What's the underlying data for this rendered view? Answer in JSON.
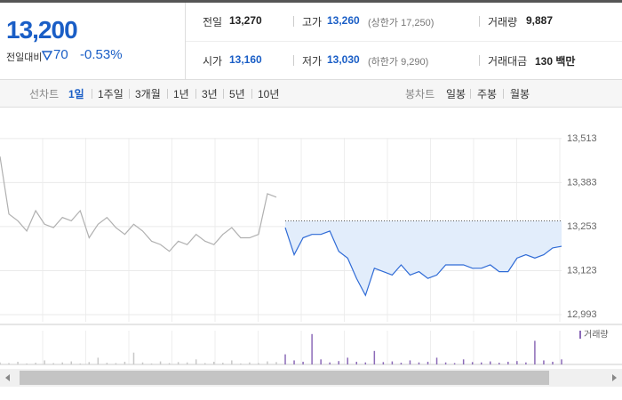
{
  "quote": {
    "price": "13,200",
    "change_label": "전일대비",
    "change": "70",
    "change_pct": "-0.53%",
    "fields": [
      {
        "label": "전일",
        "value": "13,270"
      },
      {
        "label": "고가",
        "value": "13,260",
        "note": "(상한가 17,250)"
      },
      {
        "label": "거래량",
        "value": "9,887"
      },
      {
        "label": "시가",
        "value": "13,160"
      },
      {
        "label": "저가",
        "value": "13,030",
        "note": "(하한가 9,290)"
      },
      {
        "label": "거래대금",
        "value": "130 백만"
      }
    ]
  },
  "tabs": {
    "line_label": "선차트",
    "line_tabs": [
      "1일",
      "1주일",
      "3개월",
      "1년",
      "3년",
      "5년",
      "10년"
    ],
    "selected": 0,
    "candle_label": "봉차트",
    "candle_tabs": [
      "일봉",
      "주봉",
      "월봉"
    ]
  },
  "chart_data": {
    "type": "line",
    "ylim": [
      12972,
      13594
    ],
    "yticks": [
      {
        "value": 13513,
        "label": "13,513"
      },
      {
        "value": 13383,
        "label": "13,383"
      },
      {
        "value": 13253,
        "label": "13,253"
      },
      {
        "value": 13123,
        "label": "13,123"
      },
      {
        "value": 12993,
        "label": "12,993"
      }
    ],
    "reference": 13270,
    "grid": true,
    "series": [
      {
        "color": "#b0b0b0",
        "values": [
          13460,
          13290,
          13270,
          13240,
          13300,
          13260,
          13250,
          13280,
          13270,
          13300,
          13220,
          13260,
          13280,
          13250,
          13230,
          13260,
          13240,
          13210,
          13200,
          13180,
          13210,
          13200,
          13230,
          13210,
          13200,
          13230,
          13250,
          13220,
          13220,
          13230,
          13350,
          13340,
          null,
          null,
          null,
          null,
          null,
          null,
          null,
          null,
          null,
          null,
          null,
          null,
          null,
          null,
          null,
          null,
          null,
          null,
          null,
          null,
          null,
          null,
          null,
          null,
          null,
          null,
          null,
          null,
          null,
          null,
          null,
          null
        ]
      },
      {
        "color": "#2f6bd6",
        "fill": "#e2edfb",
        "values": [
          null,
          null,
          null,
          null,
          null,
          null,
          null,
          null,
          null,
          null,
          null,
          null,
          null,
          null,
          null,
          null,
          null,
          null,
          null,
          null,
          null,
          null,
          null,
          null,
          null,
          null,
          null,
          null,
          null,
          null,
          null,
          null,
          13250,
          13170,
          13220,
          13230,
          13230,
          13240,
          13180,
          13160,
          13100,
          13050,
          13130,
          13120,
          13110,
          13140,
          13110,
          13120,
          13100,
          13110,
          13140,
          13140,
          13140,
          13130,
          13130,
          13140,
          13120,
          13120,
          13160,
          13170,
          13160,
          13170,
          13190,
          13195
        ]
      }
    ],
    "volume": {
      "name": "거래량",
      "ylim": [
        0,
        1000
      ],
      "colors": [
        "#c8c8c8",
        "#8c6bb8"
      ],
      "values": [
        60,
        40,
        80,
        30,
        50,
        120,
        40,
        60,
        90,
        30,
        70,
        200,
        50,
        40,
        80,
        350,
        60,
        30,
        90,
        40,
        70,
        60,
        150,
        40,
        80,
        50,
        120,
        30,
        60,
        40,
        90,
        70,
        300,
        120,
        80,
        900,
        150,
        60,
        100,
        200,
        80,
        60,
        400,
        70,
        90,
        50,
        120,
        60,
        80,
        200,
        60,
        40,
        150,
        70,
        60,
        90,
        50,
        80,
        100,
        60,
        700,
        120,
        80,
        150
      ]
    }
  }
}
